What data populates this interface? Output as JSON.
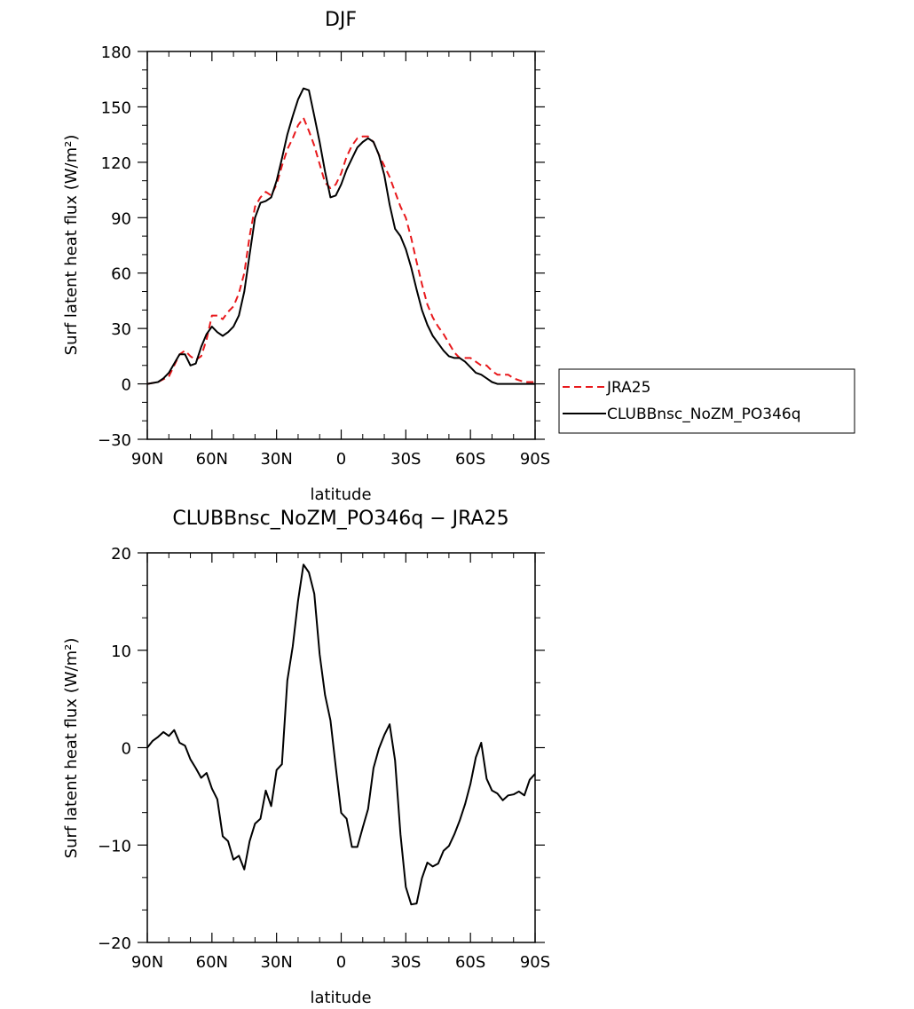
{
  "chart_data": [
    {
      "type": "line",
      "title": "DJF",
      "xlabel": "latitude",
      "ylabel": "Surf latent heat flux (W/m²)",
      "xlim": [
        90,
        -90
      ],
      "ylim": [
        -30,
        180
      ],
      "xticks": [
        90,
        60,
        30,
        0,
        -30,
        -60,
        -90
      ],
      "xticklabels": [
        "90N",
        "60N",
        "30N",
        "0",
        "30S",
        "60S",
        "90S"
      ],
      "yticks": [
        -30,
        0,
        30,
        60,
        90,
        120,
        150,
        180
      ],
      "yticklabels": [
        "−30",
        "0",
        "30",
        "60",
        "90",
        "120",
        "150",
        "180"
      ],
      "grid": false,
      "legend": "right",
      "series": [
        {
          "name": "JRA25",
          "color": "#e8191c",
          "dash": "dashed",
          "x": [
            90,
            85,
            80,
            77.5,
            75,
            72.5,
            70,
            67.5,
            65,
            62.5,
            60,
            57.5,
            55,
            52.5,
            50,
            47.5,
            45,
            42.5,
            40,
            37.5,
            35,
            32.5,
            30,
            27.5,
            25,
            22.5,
            20,
            17.5,
            15,
            12.5,
            10,
            7.5,
            5,
            2.5,
            0,
            -2.5,
            -5,
            -7.5,
            -10,
            -12.5,
            -15,
            -17.5,
            -20,
            -22.5,
            -25,
            -27.5,
            -30,
            -32.5,
            -35,
            -37.5,
            -40,
            -42.5,
            -45,
            -47.5,
            -50,
            -52.5,
            -55,
            -57.5,
            -60,
            -62.5,
            -65,
            -67.5,
            -70,
            -72.5,
            -75,
            -77.5,
            -80,
            -82.5,
            -85,
            -87.5,
            -90
          ],
          "y": [
            0,
            1,
            4,
            10,
            16,
            18,
            15,
            13,
            15,
            24,
            37,
            37,
            35,
            39,
            42,
            49,
            60,
            80,
            96,
            101,
            104,
            102,
            108,
            118,
            127,
            133,
            140,
            144,
            137,
            129,
            119,
            109,
            106,
            108,
            114,
            123,
            129,
            133,
            134,
            134,
            131,
            124,
            118,
            112,
            104,
            96,
            90,
            79,
            66,
            54,
            43,
            36,
            31,
            27,
            22,
            17,
            14,
            14,
            14,
            12,
            10,
            10,
            7,
            5,
            5,
            5,
            3,
            2,
            1,
            1,
            1
          ]
        },
        {
          "name": "CLUBBnsc_NoZM_PO346q",
          "color": "#000000",
          "dash": "solid",
          "x": [
            90,
            85,
            82.5,
            80,
            77.5,
            75,
            72.5,
            70,
            67.5,
            65,
            62.5,
            60,
            57.5,
            55,
            52.5,
            50,
            47.5,
            45,
            42.5,
            40,
            37.5,
            35,
            32.5,
            30,
            27.5,
            25,
            22.5,
            20,
            17.5,
            15,
            12.5,
            10,
            7.5,
            5,
            2.5,
            0,
            -2.5,
            -5,
            -7.5,
            -10,
            -12.5,
            -15,
            -17.5,
            -20,
            -22.5,
            -25,
            -27.5,
            -30,
            -32.5,
            -35,
            -37.5,
            -40,
            -42.5,
            -45,
            -47.5,
            -50,
            -52.5,
            -55,
            -57.5,
            -60,
            -62.5,
            -65,
            -67.5,
            -70,
            -72.5,
            -75,
            -77.5,
            -80,
            -82.5,
            -85,
            -87.5,
            -90
          ],
          "y": [
            0,
            1,
            3,
            6,
            11,
            16,
            16,
            10,
            11,
            20,
            27,
            31,
            28,
            26,
            28,
            31,
            37,
            50,
            70,
            90,
            98,
            99,
            101,
            110,
            122,
            135,
            145,
            154,
            160,
            159,
            145,
            131,
            115,
            101,
            102,
            108,
            116,
            122,
            128,
            131,
            133,
            131,
            124,
            113,
            97,
            84,
            80,
            73,
            63,
            51,
            40,
            32,
            26,
            22,
            18,
            15,
            14,
            14,
            12,
            9,
            6,
            5,
            3,
            1,
            0,
            0,
            0,
            0,
            0,
            0,
            0,
            0
          ]
        }
      ]
    },
    {
      "type": "line",
      "title": "CLUBBnsc_NoZM_PO346q − JRA25",
      "xlabel": "latitude",
      "ylabel": "Surf latent heat flux (W/m²)",
      "xlim": [
        90,
        -90
      ],
      "ylim": [
        -20,
        20
      ],
      "xticks": [
        90,
        60,
        30,
        0,
        -30,
        -60,
        -90
      ],
      "xticklabels": [
        "90N",
        "60N",
        "30N",
        "0",
        "30S",
        "60S",
        "90S"
      ],
      "yticks": [
        -20,
        -10,
        0,
        10,
        20
      ],
      "yticklabels": [
        "−20",
        "−10",
        "0",
        "10",
        "20"
      ],
      "grid": false,
      "series": [
        {
          "color": "#000000",
          "dash": "solid",
          "x": [
            90,
            87.5,
            85,
            82.5,
            80,
            77.5,
            75,
            72.5,
            70,
            67.5,
            65,
            62.5,
            60,
            57.5,
            55,
            52.5,
            50,
            47.5,
            45,
            42.5,
            40,
            37.5,
            35,
            32.5,
            30,
            27.5,
            25,
            22.5,
            20,
            17.5,
            15,
            12.5,
            10,
            7.5,
            5,
            2.5,
            0,
            -2.5,
            -5,
            -7.5,
            -10,
            -12.5,
            -15,
            -17.5,
            -20,
            -22.5,
            -25,
            -27.5,
            -30,
            -32.5,
            -35,
            -37.5,
            -40,
            -42.5,
            -45,
            -47.5,
            -50,
            -52.5,
            -55,
            -57.5,
            -60,
            -62.5,
            -65,
            -67.5,
            -70,
            -72.5,
            -75,
            -77.5,
            -80,
            -82.5,
            -85,
            -87.5,
            -90
          ],
          "y": [
            0,
            0.7,
            1.1,
            1.6,
            1.2,
            1.8,
            0.5,
            0.2,
            -1.2,
            -2.1,
            -3.1,
            -2.6,
            -4.2,
            -5.3,
            -9.1,
            -9.6,
            -11.5,
            -11.1,
            -12.5,
            -9.6,
            -7.8,
            -7.3,
            -4.4,
            -6.0,
            -2.3,
            -1.7,
            6.9,
            10.4,
            15.1,
            18.8,
            18.0,
            15.8,
            9.6,
            5.4,
            2.8,
            -2.0,
            -6.7,
            -7.3,
            -10.2,
            -10.2,
            -8.2,
            -6.3,
            -2.1,
            -0.1,
            1.3,
            2.4,
            -1.3,
            -8.9,
            -14.3,
            -16.1,
            -16.0,
            -13.4,
            -11.8,
            -12.2,
            -11.9,
            -10.6,
            -10.1,
            -8.9,
            -7.5,
            -5.8,
            -3.7,
            -1.0,
            0.5,
            -3.2,
            -4.4,
            -4.7,
            -5.4,
            -4.9,
            -4.8,
            -4.5,
            -4.9,
            -3.3,
            -2.7
          ]
        }
      ]
    }
  ]
}
